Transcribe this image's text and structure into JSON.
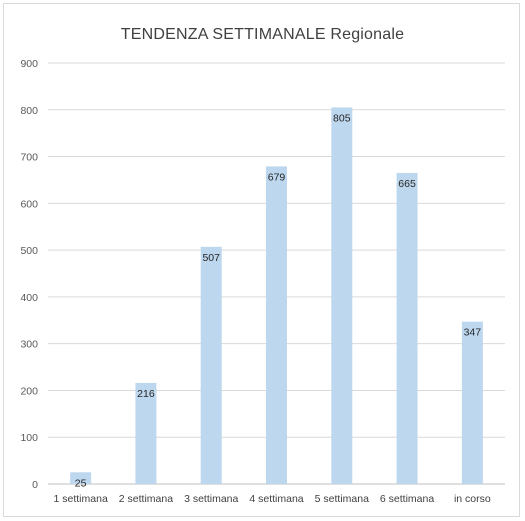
{
  "chart_data": {
    "type": "bar",
    "title": "TENDENZA SETTIMANALE Regionale",
    "categories": [
      "1 settimana",
      "2 settimana",
      "3 settimana",
      "4 settimana",
      "5 settimana",
      "6 settimana",
      "in corso"
    ],
    "values": [
      25,
      216,
      507,
      679,
      805,
      665,
      347
    ],
    "data_labels": [
      "25",
      "216",
      "507",
      "679",
      "805",
      "665",
      "347"
    ],
    "ylim": [
      0,
      900
    ],
    "yticks": [
      "0",
      "100",
      "200",
      "300",
      "400",
      "500",
      "600",
      "700",
      "800",
      "900"
    ],
    "grid": true,
    "legend": "none",
    "colors": {
      "bar": "#bdd7ee",
      "grid": "#d9d9d9",
      "axis": "#bfbfbf"
    }
  }
}
